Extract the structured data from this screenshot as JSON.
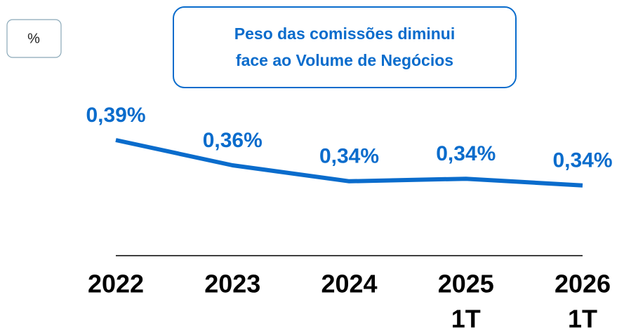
{
  "chart_data": {
    "type": "line",
    "unit_box": "%",
    "annotation": [
      "Peso das comissões diminui",
      "face ao Volume de Negócios"
    ],
    "categories": [
      "2022",
      "2023",
      "2024",
      "2025",
      "2026"
    ],
    "sublabels": [
      null,
      null,
      null,
      "1T",
      "1T"
    ],
    "series": [
      {
        "color": "#0a6ccc",
        "values": [
          0.39,
          0.36,
          0.341,
          0.344,
          0.336
        ],
        "value_labels": [
          "0,39%",
          "0,36%",
          "0,34%",
          "0,34%",
          "0,34%"
        ]
      }
    ],
    "ylim": [
      0.25,
      0.4
    ]
  }
}
